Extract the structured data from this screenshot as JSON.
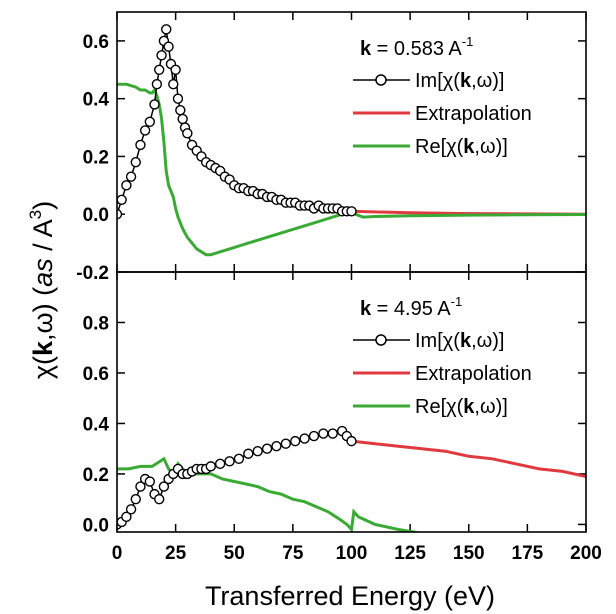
{
  "figure": {
    "xlabel": "Transferred Energy (eV)",
    "ylabel_parts": [
      "χ(",
      "k",
      ",ω) (",
      "as",
      " / A",
      "3",
      ")"
    ]
  },
  "chart_data": [
    {
      "type": "line",
      "panel": "top",
      "annotation": {
        "bold": "k",
        "text": " = 0.583 A",
        "sup": "-1"
      },
      "xlim": [
        0,
        200
      ],
      "ylim": [
        -0.2,
        0.7
      ],
      "xticks": [
        "0",
        "25",
        "50",
        "75",
        "100",
        "125",
        "150",
        "175",
        "200"
      ],
      "yticks": [
        "-0.2",
        "0.0",
        "0.2",
        "0.4",
        "0.6"
      ],
      "legend_location": "top-right",
      "series": [
        {
          "name": "Im[χ(k,ω)]",
          "name_parts": [
            "Im[χ(",
            "k",
            ",ω)]"
          ],
          "color": "#000000",
          "marker": "open-circle",
          "x": [
            0,
            2,
            4,
            6,
            8,
            10,
            12,
            14,
            16,
            17,
            18,
            19,
            20,
            21,
            22,
            23,
            24,
            25,
            26,
            27,
            28,
            29,
            30,
            32,
            34,
            36,
            38,
            40,
            42,
            44,
            46,
            48,
            50,
            52,
            54,
            56,
            58,
            60,
            62,
            64,
            66,
            68,
            70,
            72,
            74,
            76,
            78,
            80,
            82,
            84,
            86,
            88,
            90,
            92,
            94,
            96,
            98,
            100
          ],
          "y": [
            0,
            0.05,
            0.1,
            0.13,
            0.18,
            0.24,
            0.29,
            0.32,
            0.38,
            0.45,
            0.5,
            0.55,
            0.6,
            0.64,
            0.58,
            0.52,
            0.45,
            0.5,
            0.4,
            0.36,
            0.33,
            0.3,
            0.28,
            0.24,
            0.22,
            0.2,
            0.18,
            0.17,
            0.16,
            0.15,
            0.13,
            0.12,
            0.1,
            0.09,
            0.09,
            0.08,
            0.08,
            0.07,
            0.07,
            0.06,
            0.06,
            0.05,
            0.05,
            0.04,
            0.04,
            0.04,
            0.03,
            0.03,
            0.03,
            0.02,
            0.03,
            0.02,
            0.02,
            0.02,
            0.02,
            0.01,
            0.01,
            0.01
          ]
        },
        {
          "name": "Extrapolation",
          "name_parts": [
            "Extrapolation",
            "",
            ""
          ],
          "color": "#e03a3e",
          "marker": "none",
          "x": [
            100,
            125,
            150,
            175,
            200
          ],
          "y": [
            0.01,
            0.005,
            0.002,
            0.001,
            0.0
          ]
        },
        {
          "name": "Re[χ(k,ω)]",
          "name_parts": [
            "Re[χ(",
            "k",
            ",ω)]"
          ],
          "color": "#3aaa35",
          "marker": "none",
          "x": [
            0,
            4,
            8,
            10,
            12,
            14,
            15,
            16,
            17,
            18,
            19,
            20,
            21,
            22,
            23,
            24,
            25,
            26,
            28,
            30,
            32,
            34,
            36,
            38,
            40,
            44,
            48,
            52,
            56,
            60,
            64,
            68,
            72,
            76,
            80,
            84,
            88,
            92,
            96,
            100,
            105,
            110,
            125,
            150,
            175,
            200
          ],
          "y": [
            0.45,
            0.45,
            0.44,
            0.43,
            0.43,
            0.42,
            0.42,
            0.43,
            0.41,
            0.38,
            0.33,
            0.25,
            0.15,
            0.1,
            0.08,
            0.06,
            0.02,
            -0.01,
            -0.05,
            -0.08,
            -0.1,
            -0.12,
            -0.13,
            -0.14,
            -0.14,
            -0.13,
            -0.12,
            -0.11,
            -0.1,
            -0.09,
            -0.08,
            -0.07,
            -0.06,
            -0.05,
            -0.04,
            -0.03,
            -0.02,
            -0.01,
            0.0,
            0.005,
            -0.01,
            -0.008,
            -0.005,
            -0.003,
            -0.002,
            -0.001
          ]
        }
      ]
    },
    {
      "type": "line",
      "panel": "bottom",
      "annotation": {
        "bold": "k",
        "text": " = 4.95 A",
        "sup": "-1"
      },
      "xlim": [
        0,
        200
      ],
      "ylim": [
        -0.03,
        1.0
      ],
      "xticks": [
        "0",
        "25",
        "50",
        "75",
        "100",
        "125",
        "150",
        "175",
        "200"
      ],
      "yticks": [
        "0.0",
        "0.2",
        "0.4",
        "0.6",
        "0.8"
      ],
      "legend_location": "top-right",
      "series": [
        {
          "name": "Im[χ(k,ω)]",
          "name_parts": [
            "Im[χ(",
            "k",
            ",ω)]"
          ],
          "color": "#000000",
          "marker": "open-circle",
          "x": [
            0,
            2,
            4,
            6,
            8,
            10,
            12,
            14,
            16,
            18,
            20,
            22,
            24,
            26,
            28,
            30,
            32,
            34,
            36,
            38,
            40,
            44,
            48,
            52,
            56,
            60,
            64,
            68,
            72,
            76,
            80,
            84,
            88,
            92,
            96,
            98,
            100
          ],
          "y": [
            0,
            0.01,
            0.03,
            0.06,
            0.1,
            0.15,
            0.18,
            0.17,
            0.12,
            0.1,
            0.15,
            0.18,
            0.2,
            0.22,
            0.2,
            0.2,
            0.21,
            0.22,
            0.22,
            0.22,
            0.23,
            0.24,
            0.25,
            0.26,
            0.28,
            0.29,
            0.3,
            0.31,
            0.32,
            0.33,
            0.34,
            0.35,
            0.36,
            0.36,
            0.37,
            0.35,
            0.33
          ]
        },
        {
          "name": "Extrapolation",
          "name_parts": [
            "Extrapolation",
            "",
            ""
          ],
          "color": "#e03a3e",
          "marker": "none",
          "x": [
            100,
            110,
            120,
            130,
            140,
            150,
            160,
            170,
            180,
            190,
            200
          ],
          "y": [
            0.33,
            0.32,
            0.31,
            0.3,
            0.29,
            0.27,
            0.26,
            0.24,
            0.22,
            0.21,
            0.19
          ]
        },
        {
          "name": "Re[χ(k,ω)]",
          "name_parts": [
            "Re[χ(",
            "k",
            ",ω)]"
          ],
          "color": "#3aaa35",
          "marker": "none",
          "x": [
            0,
            5,
            10,
            15,
            20,
            22,
            24,
            26,
            28,
            30,
            35,
            40,
            45,
            50,
            55,
            60,
            65,
            70,
            75,
            80,
            85,
            90,
            95,
            98,
            100,
            101,
            103,
            110,
            120,
            130,
            150,
            175,
            200
          ],
          "y": [
            0.22,
            0.22,
            0.23,
            0.23,
            0.26,
            0.22,
            0.2,
            0.24,
            0.22,
            0.2,
            0.2,
            0.2,
            0.18,
            0.17,
            0.16,
            0.15,
            0.13,
            0.12,
            0.1,
            0.09,
            0.07,
            0.05,
            0.02,
            0.0,
            -0.02,
            0.05,
            0.03,
            0.0,
            -0.02,
            -0.035,
            -0.04,
            -0.04,
            -0.04
          ]
        }
      ]
    }
  ]
}
